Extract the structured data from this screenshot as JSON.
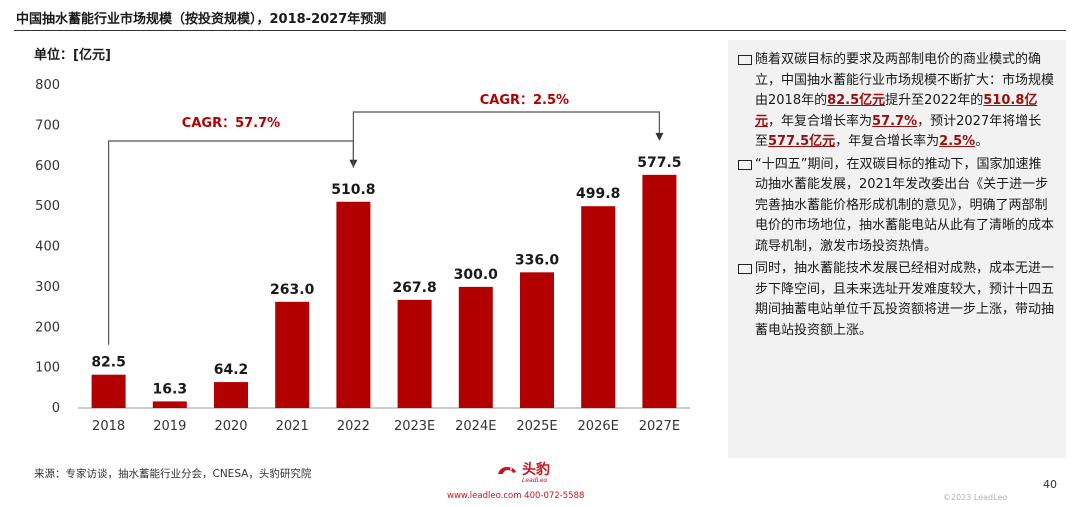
{
  "header": {
    "title": "中国抽水蓄能行业市场规模（按投资规模），2018-2027年预测"
  },
  "unit_label": "单位：[亿元]",
  "colors": {
    "bar": "#b20000",
    "cagr_text": "#b20000",
    "highlight": "#9b0e0e"
  },
  "chart_data": {
    "type": "bar",
    "title": "",
    "categories": [
      "2018",
      "2019",
      "2020",
      "2021",
      "2022",
      "2023E",
      "2024E",
      "2025E",
      "2026E",
      "2027E"
    ],
    "values": [
      82.5,
      16.3,
      64.2,
      263.0,
      510.8,
      267.8,
      300.0,
      336.0,
      499.8,
      577.5
    ],
    "value_labels": [
      "82.5",
      "16.3",
      "64.2",
      "263.0",
      "510.8",
      "267.8",
      "300.0",
      "336.0",
      "499.8",
      "577.5"
    ],
    "ylim": [
      0,
      800
    ],
    "yticks": [
      "0",
      "100",
      "200",
      "300",
      "400",
      "500",
      "600",
      "700",
      "800"
    ],
    "grid": false,
    "annotations": [
      {
        "label": "CAGR：57.7%",
        "from": "2018",
        "to": "2022"
      },
      {
        "label": "CAGR：2.5%",
        "from": "2022",
        "to": "2027E"
      }
    ]
  },
  "sidebar": {
    "b1": {
      "t1": "随着双碳目标的要求及两部制电价的商业模式的确立，中国抽水蓄能行业市场规模不断扩大：市场规模由2018年的",
      "h1": "82.5亿元",
      "t2": "提升至2022年的",
      "h2": "510.8亿元",
      "t3": "，年复合增长率为",
      "h3": "57.7%",
      "t4": "，预计2027年将增长至",
      "h4": "577.5亿元",
      "t5": "，年复合增长率为",
      "h5": "2.5%",
      "t6": "。"
    },
    "b2": "“十四五”期间，在双碳目标的推动下，国家加速推动抽水蓄能发展，2021年发改委出台《关于进一步完善抽水蓄能价格形成机制的意见》，明确了两部制电价的市场地位，抽水蓄能电站从此有了清晰的成本疏导机制，激发市场投资热情。",
    "b3": "同时，抽水蓄能技术发展已经相对成熟，成本无进一步下降空间，且未来选址开发难度较大，预计十四五期间抽蓄电站单位千瓦投资额将进一步上涨，带动抽蓄电站投资额上涨。"
  },
  "footer": {
    "source": "来源：专家访谈，抽水蓄能行业分会，CNESA，头豹研究院",
    "logo": "头豹",
    "logo_sub": "LeadLeo",
    "contact": "www.leadleo.com   400-072-5588",
    "page_number": "40",
    "copyright": "©2023 LeadLeo"
  }
}
